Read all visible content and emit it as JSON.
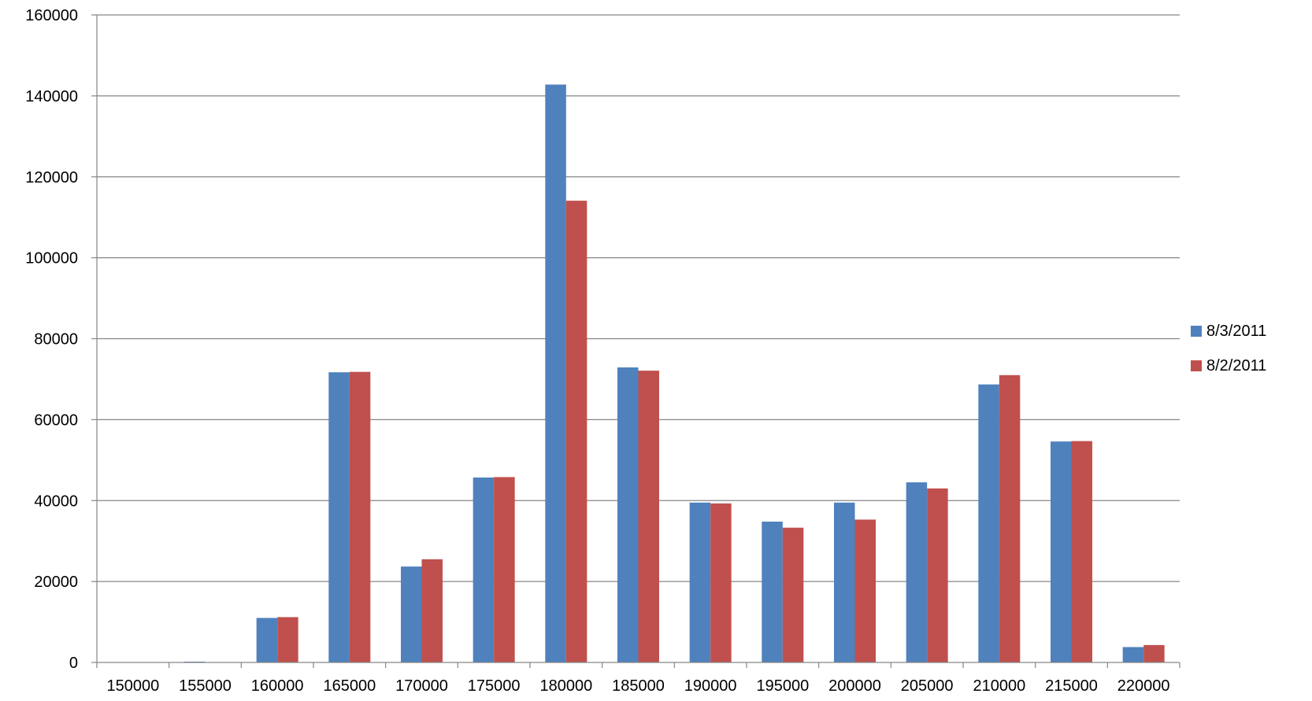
{
  "chart_data": {
    "type": "bar",
    "categories": [
      "150000",
      "155000",
      "160000",
      "165000",
      "170000",
      "175000",
      "180000",
      "185000",
      "190000",
      "195000",
      "200000",
      "205000",
      "210000",
      "215000",
      "220000"
    ],
    "series": [
      {
        "name": "8/3/2011",
        "color": "#4F81BD",
        "values": [
          0,
          200,
          11000,
          71700,
          23700,
          45700,
          142800,
          72900,
          39500,
          34800,
          39500,
          44500,
          68700,
          54600,
          3800
        ]
      },
      {
        "name": "8/2/2011",
        "color": "#C0504D",
        "values": [
          0,
          0,
          11200,
          71800,
          25500,
          45800,
          114100,
          72100,
          39300,
          33300,
          35300,
          43000,
          71000,
          54700,
          4300
        ]
      }
    ],
    "ylim": [
      0,
      160000
    ],
    "yticks": [
      "0",
      "20000",
      "40000",
      "60000",
      "80000",
      "100000",
      "120000",
      "140000",
      "160000"
    ],
    "grid": true,
    "legend_position": "right",
    "title": "",
    "xlabel": "",
    "ylabel": ""
  }
}
